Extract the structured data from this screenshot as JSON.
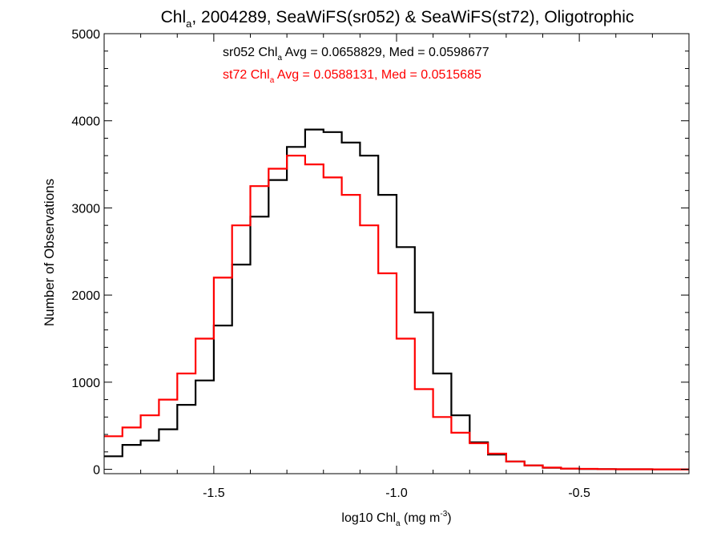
{
  "chart_data": {
    "type": "line",
    "step": true,
    "title": {
      "prefix": "Chl",
      "sub": "a",
      "rest": ", 2004289, SeaWiFS(sr052) & SeaWiFS(st72), Oligotrophic"
    },
    "xlabel": {
      "prefix": "log10 Chl",
      "sub": "a",
      "mid": " (mg m",
      "sup": "-3",
      "suffix": ")"
    },
    "ylabel": "Number of Observations",
    "xlim": [
      -1.8,
      -0.2
    ],
    "ylim": [
      -50,
      5000
    ],
    "xticks": [
      -1.5,
      -1.0,
      -0.5
    ],
    "xtick_labels": [
      "-1.5",
      "-1.0",
      "-0.5"
    ],
    "yticks": [
      0,
      1000,
      2000,
      3000,
      4000,
      5000
    ],
    "ytick_labels": [
      "0",
      "1000",
      "2000",
      "3000",
      "4000",
      "5000"
    ],
    "grid": false,
    "annotations": [
      {
        "name": "sr052",
        "prefix": "sr052 Chl",
        "sub": "a",
        "rest": " Avg = 0.0658829, Med = 0.0598677",
        "color": "#000000"
      },
      {
        "name": "st72",
        "prefix": "st72 Chl",
        "sub": "a",
        "rest": " Avg = 0.0588131, Med = 0.0515685",
        "color": "#ff0000"
      }
    ],
    "series": [
      {
        "color": "#000000",
        "x": [
          -1.8,
          -1.75,
          -1.7,
          -1.65,
          -1.6,
          -1.55,
          -1.5,
          -1.45,
          -1.4,
          -1.35,
          -1.3,
          -1.25,
          -1.2,
          -1.15,
          -1.1,
          -1.05,
          -1.0,
          -0.95,
          -0.9,
          -0.85,
          -0.8,
          -0.75,
          -0.7,
          -0.65,
          -0.6,
          -0.55,
          -0.5,
          -0.45,
          -0.4,
          -0.3,
          -0.2
        ],
        "y": [
          150,
          280,
          330,
          460,
          740,
          1020,
          1650,
          2350,
          2900,
          3320,
          3700,
          3900,
          3870,
          3750,
          3600,
          3150,
          2550,
          1800,
          1100,
          620,
          310,
          170,
          90,
          45,
          18,
          8,
          4,
          2,
          1,
          0,
          0
        ]
      },
      {
        "color": "#ff0000",
        "x": [
          -1.8,
          -1.75,
          -1.7,
          -1.65,
          -1.6,
          -1.55,
          -1.5,
          -1.45,
          -1.4,
          -1.35,
          -1.3,
          -1.25,
          -1.2,
          -1.15,
          -1.1,
          -1.05,
          -1.0,
          -0.95,
          -0.9,
          -0.85,
          -0.8,
          -0.75,
          -0.7,
          -0.65,
          -0.6,
          -0.55,
          -0.5,
          -0.45,
          -0.4,
          -0.3,
          -0.2
        ],
        "y": [
          380,
          480,
          620,
          800,
          1100,
          1500,
          2200,
          2800,
          3250,
          3450,
          3600,
          3500,
          3350,
          3150,
          2800,
          2250,
          1500,
          920,
          600,
          420,
          300,
          180,
          90,
          45,
          20,
          9,
          5,
          2,
          1,
          0,
          0
        ]
      }
    ]
  }
}
